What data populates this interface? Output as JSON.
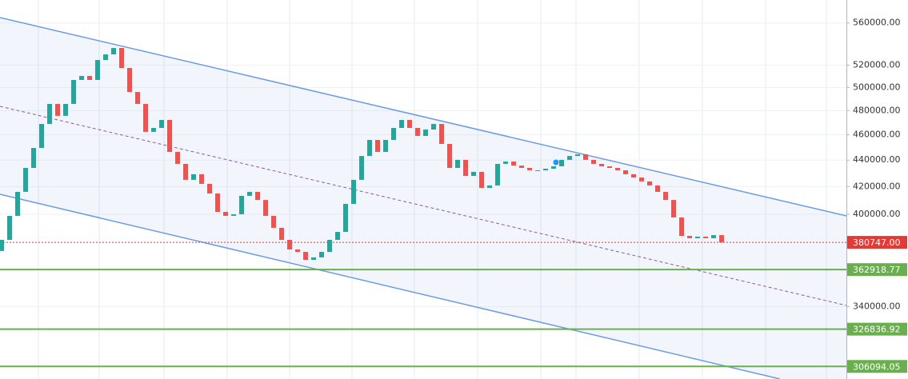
{
  "chart_data": {
    "type": "candlestick",
    "ylim": [
      299400,
      583100
    ],
    "log_scale": true,
    "grid": true,
    "up_color": "#26a69a",
    "down_color": "#ef5350",
    "yticks": [
      {
        "value": 560000,
        "label": "560000.00"
      },
      {
        "value": 520000,
        "label": "520000.00"
      },
      {
        "value": 500000,
        "label": "500000.00"
      },
      {
        "value": 480000,
        "label": "480000.00"
      },
      {
        "value": 460000,
        "label": "460000.00"
      },
      {
        "value": 440000,
        "label": "440000.00"
      },
      {
        "value": 420000,
        "label": "420000.00"
      },
      {
        "value": 400000,
        "label": "400000.00"
      },
      {
        "value": 340000,
        "label": "340000.00"
      }
    ],
    "reference_lines": [
      {
        "value": 380747,
        "label": "380747.00",
        "color": "#e53935",
        "dotted": true
      },
      {
        "value": 362918.77,
        "label": "362918.77",
        "color": "#6aaf4e",
        "dotted": false
      },
      {
        "value": 326836.92,
        "label": "326836.92",
        "color": "#6aaf4e",
        "dotted": false
      },
      {
        "value": 306094.05,
        "label": "306094.05",
        "color": "#6aaf4e",
        "dotted": false
      }
    ],
    "open": [
      375000,
      382400,
      398900,
      416100,
      434000,
      449500,
      468900,
      485700,
      475600,
      485700,
      506600,
      510200,
      506600,
      524700,
      529900,
      535900,
      517400,
      496000,
      485700,
      462400,
      465600,
      472200,
      446400,
      437100,
      425000,
      429200,
      422000,
      414900,
      401700,
      398900,
      400000,
      413200,
      416100,
      410200,
      398900,
      390600,
      382400,
      376000,
      374400,
      369200,
      370800,
      374400,
      382400,
      387800,
      407400,
      425000,
      443200,
      455900,
      446400,
      455900,
      465600,
      472200,
      465600,
      459100,
      464300,
      468900,
      452700,
      434000,
      440200,
      427900,
      431000,
      419000,
      420800,
      437100,
      438900,
      435800,
      434000,
      432200,
      432200,
      433400,
      435200,
      440200,
      443200,
      444500,
      440200,
      437100,
      435200,
      434000,
      432200,
      429200,
      426700,
      423800,
      420800,
      416100,
      410200,
      397800,
      385100,
      383500,
      384600,
      383500,
      385600
    ],
    "close": [
      382400,
      398900,
      416100,
      434000,
      449500,
      468900,
      485700,
      475600,
      485700,
      506600,
      510200,
      506600,
      524700,
      529900,
      535900,
      517400,
      496000,
      485700,
      462400,
      465600,
      472200,
      446400,
      437100,
      425000,
      429200,
      422000,
      414900,
      401700,
      398900,
      400000,
      413200,
      416100,
      410200,
      398900,
      390600,
      382400,
      376000,
      374400,
      369200,
      370800,
      374400,
      382400,
      387800,
      407400,
      425000,
      443200,
      455900,
      446400,
      455900,
      465600,
      472200,
      465600,
      459100,
      464300,
      468900,
      452700,
      434000,
      440200,
      427900,
      431000,
      419000,
      420800,
      437100,
      438900,
      435800,
      434000,
      432200,
      432200,
      433400,
      435200,
      440200,
      443200,
      444500,
      440200,
      437100,
      435200,
      434000,
      432200,
      429200,
      426700,
      423800,
      420800,
      416100,
      410200,
      397800,
      385100,
      383500,
      384600,
      383500,
      385600,
      380747
    ]
  }
}
